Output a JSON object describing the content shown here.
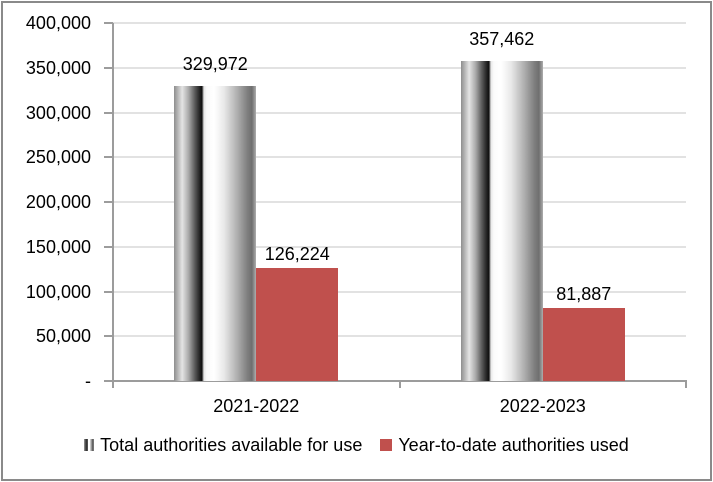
{
  "chart_data": {
    "type": "bar",
    "title": "",
    "categories": [
      "2021-2022",
      "2022-2023"
    ],
    "series": [
      {
        "name": "Total authorities available for use",
        "values": [
          329972,
          357462
        ],
        "data_labels": [
          "329,972",
          "357,462"
        ],
        "fill": "gray-cylinder-gradient"
      },
      {
        "name": "Year-to-date authorities used",
        "values": [
          126224,
          81887
        ],
        "data_labels": [
          "126,224",
          "81,887"
        ],
        "fill": "#C0504D"
      }
    ],
    "ylim": [
      0,
      400000
    ],
    "y_ticks": [
      {
        "value": 400000,
        "label": "400,000"
      },
      {
        "value": 350000,
        "label": "350,000"
      },
      {
        "value": 300000,
        "label": "300,000"
      },
      {
        "value": 250000,
        "label": "250,000"
      },
      {
        "value": 200000,
        "label": "200,000"
      },
      {
        "value": 150000,
        "label": "150,000"
      },
      {
        "value": 100000,
        "label": "100,000"
      },
      {
        "value": 50000,
        "label": "50,000"
      },
      {
        "value": 0,
        "label": "-"
      }
    ],
    "grid": true,
    "legend_position": "bottom",
    "colors": {
      "red_series": "#C0504D",
      "gridline": "#E2E2E2",
      "axis": "#9C9C9C",
      "text": "#000000",
      "frame_border": "#8A8A8A"
    }
  }
}
